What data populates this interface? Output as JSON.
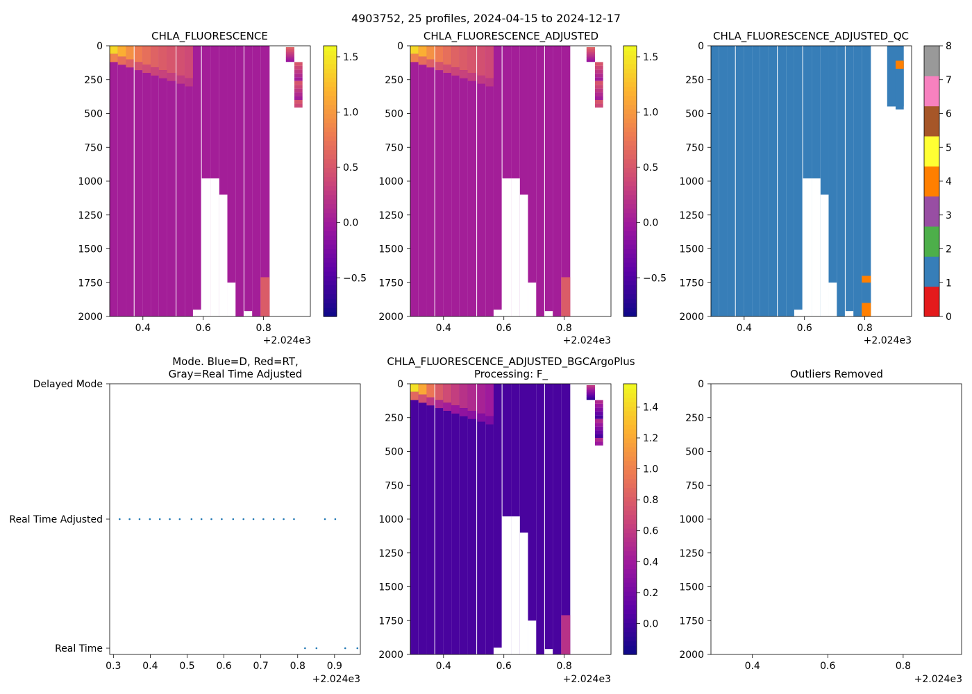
{
  "suptitle": "4903752, 25 profiles, 2024-04-15 to 2024-12-17",
  "axis_offset_label": "+2.024e3",
  "colors": {
    "plasma": [
      "#f0f921",
      "#fdb42f",
      "#ed7953",
      "#cc4778",
      "#9c179e",
      "#5c01a6",
      "#0d0887"
    ],
    "qc_colors": [
      "#e41a1c",
      "#377eb8",
      "#4daf4a",
      "#984ea3",
      "#ff7f00",
      "#ffff33",
      "#a65628",
      "#f781bf",
      "#999999"
    ],
    "mode_dots": "#1f77b4"
  },
  "chart_data": [
    {
      "id": "chla",
      "type": "heatmap",
      "title": "CHLA_FLUORESCENCE",
      "xlim": [
        0.29,
        0.955
      ],
      "ylim": [
        2000,
        0
      ],
      "xticks": [
        "0.4",
        "0.6",
        "0.8"
      ],
      "yticks": [
        "0",
        "250",
        "500",
        "750",
        "1000",
        "1250",
        "1500",
        "1750",
        "2000"
      ],
      "colorbar": {
        "min": -0.85,
        "max": 1.6,
        "ticks": [
          "−0.5",
          "0.0",
          "0.5",
          "1.0",
          "1.5"
        ],
        "tick_values": [
          -0.5,
          0,
          0.5,
          1.0,
          1.5
        ]
      },
      "background_value": 0.03
    },
    {
      "id": "chla_adj",
      "type": "heatmap",
      "title": "CHLA_FLUORESCENCE_ADJUSTED",
      "xlim": [
        0.29,
        0.955
      ],
      "ylim": [
        2000,
        0
      ],
      "xticks": [
        "0.4",
        "0.6",
        "0.8"
      ],
      "yticks": [
        "0",
        "250",
        "500",
        "750",
        "1000",
        "1250",
        "1500",
        "1750",
        "2000"
      ],
      "colorbar": {
        "min": -0.85,
        "max": 1.6,
        "ticks": [
          "−0.5",
          "0.0",
          "0.5",
          "1.0",
          "1.5"
        ],
        "tick_values": [
          -0.5,
          0,
          0.5,
          1.0,
          1.5
        ]
      },
      "background_value": 0.03
    },
    {
      "id": "chla_adj_qc",
      "type": "heatmap",
      "title": "CHLA_FLUORESCENCE_ADJUSTED_QC",
      "xlim": [
        0.29,
        0.955
      ],
      "ylim": [
        2000,
        0
      ],
      "xticks": [
        "0.4",
        "0.6",
        "0.8"
      ],
      "yticks": [
        "0",
        "250",
        "500",
        "750",
        "1000",
        "1250",
        "1500",
        "1750",
        "2000"
      ],
      "colorbar": {
        "min": 0,
        "max": 8,
        "ticks": [
          "0",
          "1",
          "2",
          "3",
          "4",
          "5",
          "6",
          "7",
          "8"
        ],
        "discrete": true
      },
      "background_value": 1
    },
    {
      "id": "mode",
      "type": "scatter",
      "title_lines": [
        "Mode. Blue=D, Red=RT,",
        "Gray=Real Time Adjusted"
      ],
      "xlim": [
        0.29,
        0.97
      ],
      "xticks": [
        "0.3",
        "0.4",
        "0.5",
        "0.6",
        "0.7",
        "0.8",
        "0.9"
      ],
      "xtick_values": [
        0.3,
        0.4,
        0.5,
        0.6,
        0.7,
        0.8,
        0.9
      ],
      "yticks": [
        "Delayed Mode",
        "Real Time Adjusted",
        "Real Time"
      ],
      "series": [
        {
          "name": "Real Time Adjusted",
          "level": 1,
          "x": [
            0.317,
            0.344,
            0.371,
            0.399,
            0.426,
            0.453,
            0.48,
            0.512,
            0.539,
            0.566,
            0.594,
            0.625,
            0.653,
            0.68,
            0.707,
            0.735,
            0.762,
            0.79,
            0.874,
            0.902
          ]
        },
        {
          "name": "Real Time",
          "level": 0,
          "x": [
            0.82,
            0.851,
            0.929,
            0.962
          ]
        }
      ]
    },
    {
      "id": "bgc_plus",
      "type": "heatmap",
      "title_lines": [
        "CHLA_FLUORESCENCE_ADJUSTED_BGCArgoPlus",
        "Processing: F_"
      ],
      "xlim": [
        0.29,
        0.955
      ],
      "ylim": [
        2000,
        0
      ],
      "xticks": [
        "0.4",
        "0.6",
        "0.8"
      ],
      "yticks": [
        "0",
        "250",
        "500",
        "750",
        "1000",
        "1250",
        "1500",
        "1750",
        "2000"
      ],
      "colorbar": {
        "min": -0.2,
        "max": 1.55,
        "ticks": [
          "0.0",
          "0.2",
          "0.4",
          "0.6",
          "0.8",
          "1.0",
          "1.2",
          "1.4"
        ],
        "tick_values": [
          0,
          0.2,
          0.4,
          0.6,
          0.8,
          1.0,
          1.2,
          1.4
        ]
      },
      "background_value": 0.02
    },
    {
      "id": "outliers",
      "type": "scatter",
      "title": "Outliers Removed",
      "xlim": [
        0.29,
        0.955
      ],
      "ylim": [
        2000,
        0
      ],
      "xticks": [
        "0.4",
        "0.6",
        "0.8"
      ],
      "xtick_values": [
        0.4,
        0.6,
        0.8
      ],
      "yticks": [
        "0",
        "250",
        "500",
        "750",
        "1000",
        "1250",
        "1500",
        "1750",
        "2000"
      ],
      "series": []
    }
  ]
}
